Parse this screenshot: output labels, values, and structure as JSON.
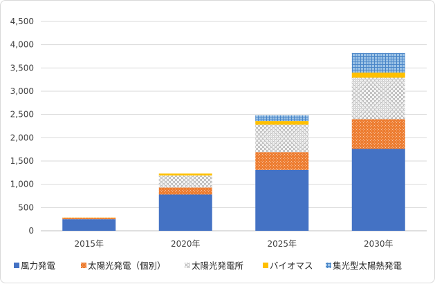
{
  "chart_data": {
    "type": "bar",
    "stacked": true,
    "categories": [
      "2015年",
      "2020年",
      "2025年",
      "2030年"
    ],
    "series": [
      {
        "name": "風力発電",
        "values": [
          250,
          780,
          1310,
          1760
        ],
        "color": "#4472c4",
        "pattern": "solid"
      },
      {
        "name": "太陽光発電（個別）",
        "values": [
          30,
          150,
          380,
          640
        ],
        "color": "#ed7d31",
        "pattern": "dots"
      },
      {
        "name": "太陽光発電所",
        "values": [
          0,
          260,
          590,
          890
        ],
        "color": "#a5a5a5",
        "pattern": "checker"
      },
      {
        "name": "バイオマス",
        "values": [
          5,
          40,
          80,
          110
        ],
        "color": "#ffc000",
        "pattern": "solid"
      },
      {
        "name": "集光型太陽熱発電",
        "values": [
          0,
          0,
          120,
          420
        ],
        "color": "#5b9bd5",
        "pattern": "grid"
      }
    ],
    "ylim": [
      0,
      4500
    ],
    "yticks": [
      "0",
      "500",
      "1,000",
      "1,500",
      "2,000",
      "2,500",
      "3,000",
      "3,500",
      "4,000",
      "4,500"
    ],
    "ytick_values": [
      0,
      500,
      1000,
      1500,
      2000,
      2500,
      3000,
      3500,
      4000,
      4500
    ],
    "grid": true,
    "legend_position": "bottom"
  }
}
